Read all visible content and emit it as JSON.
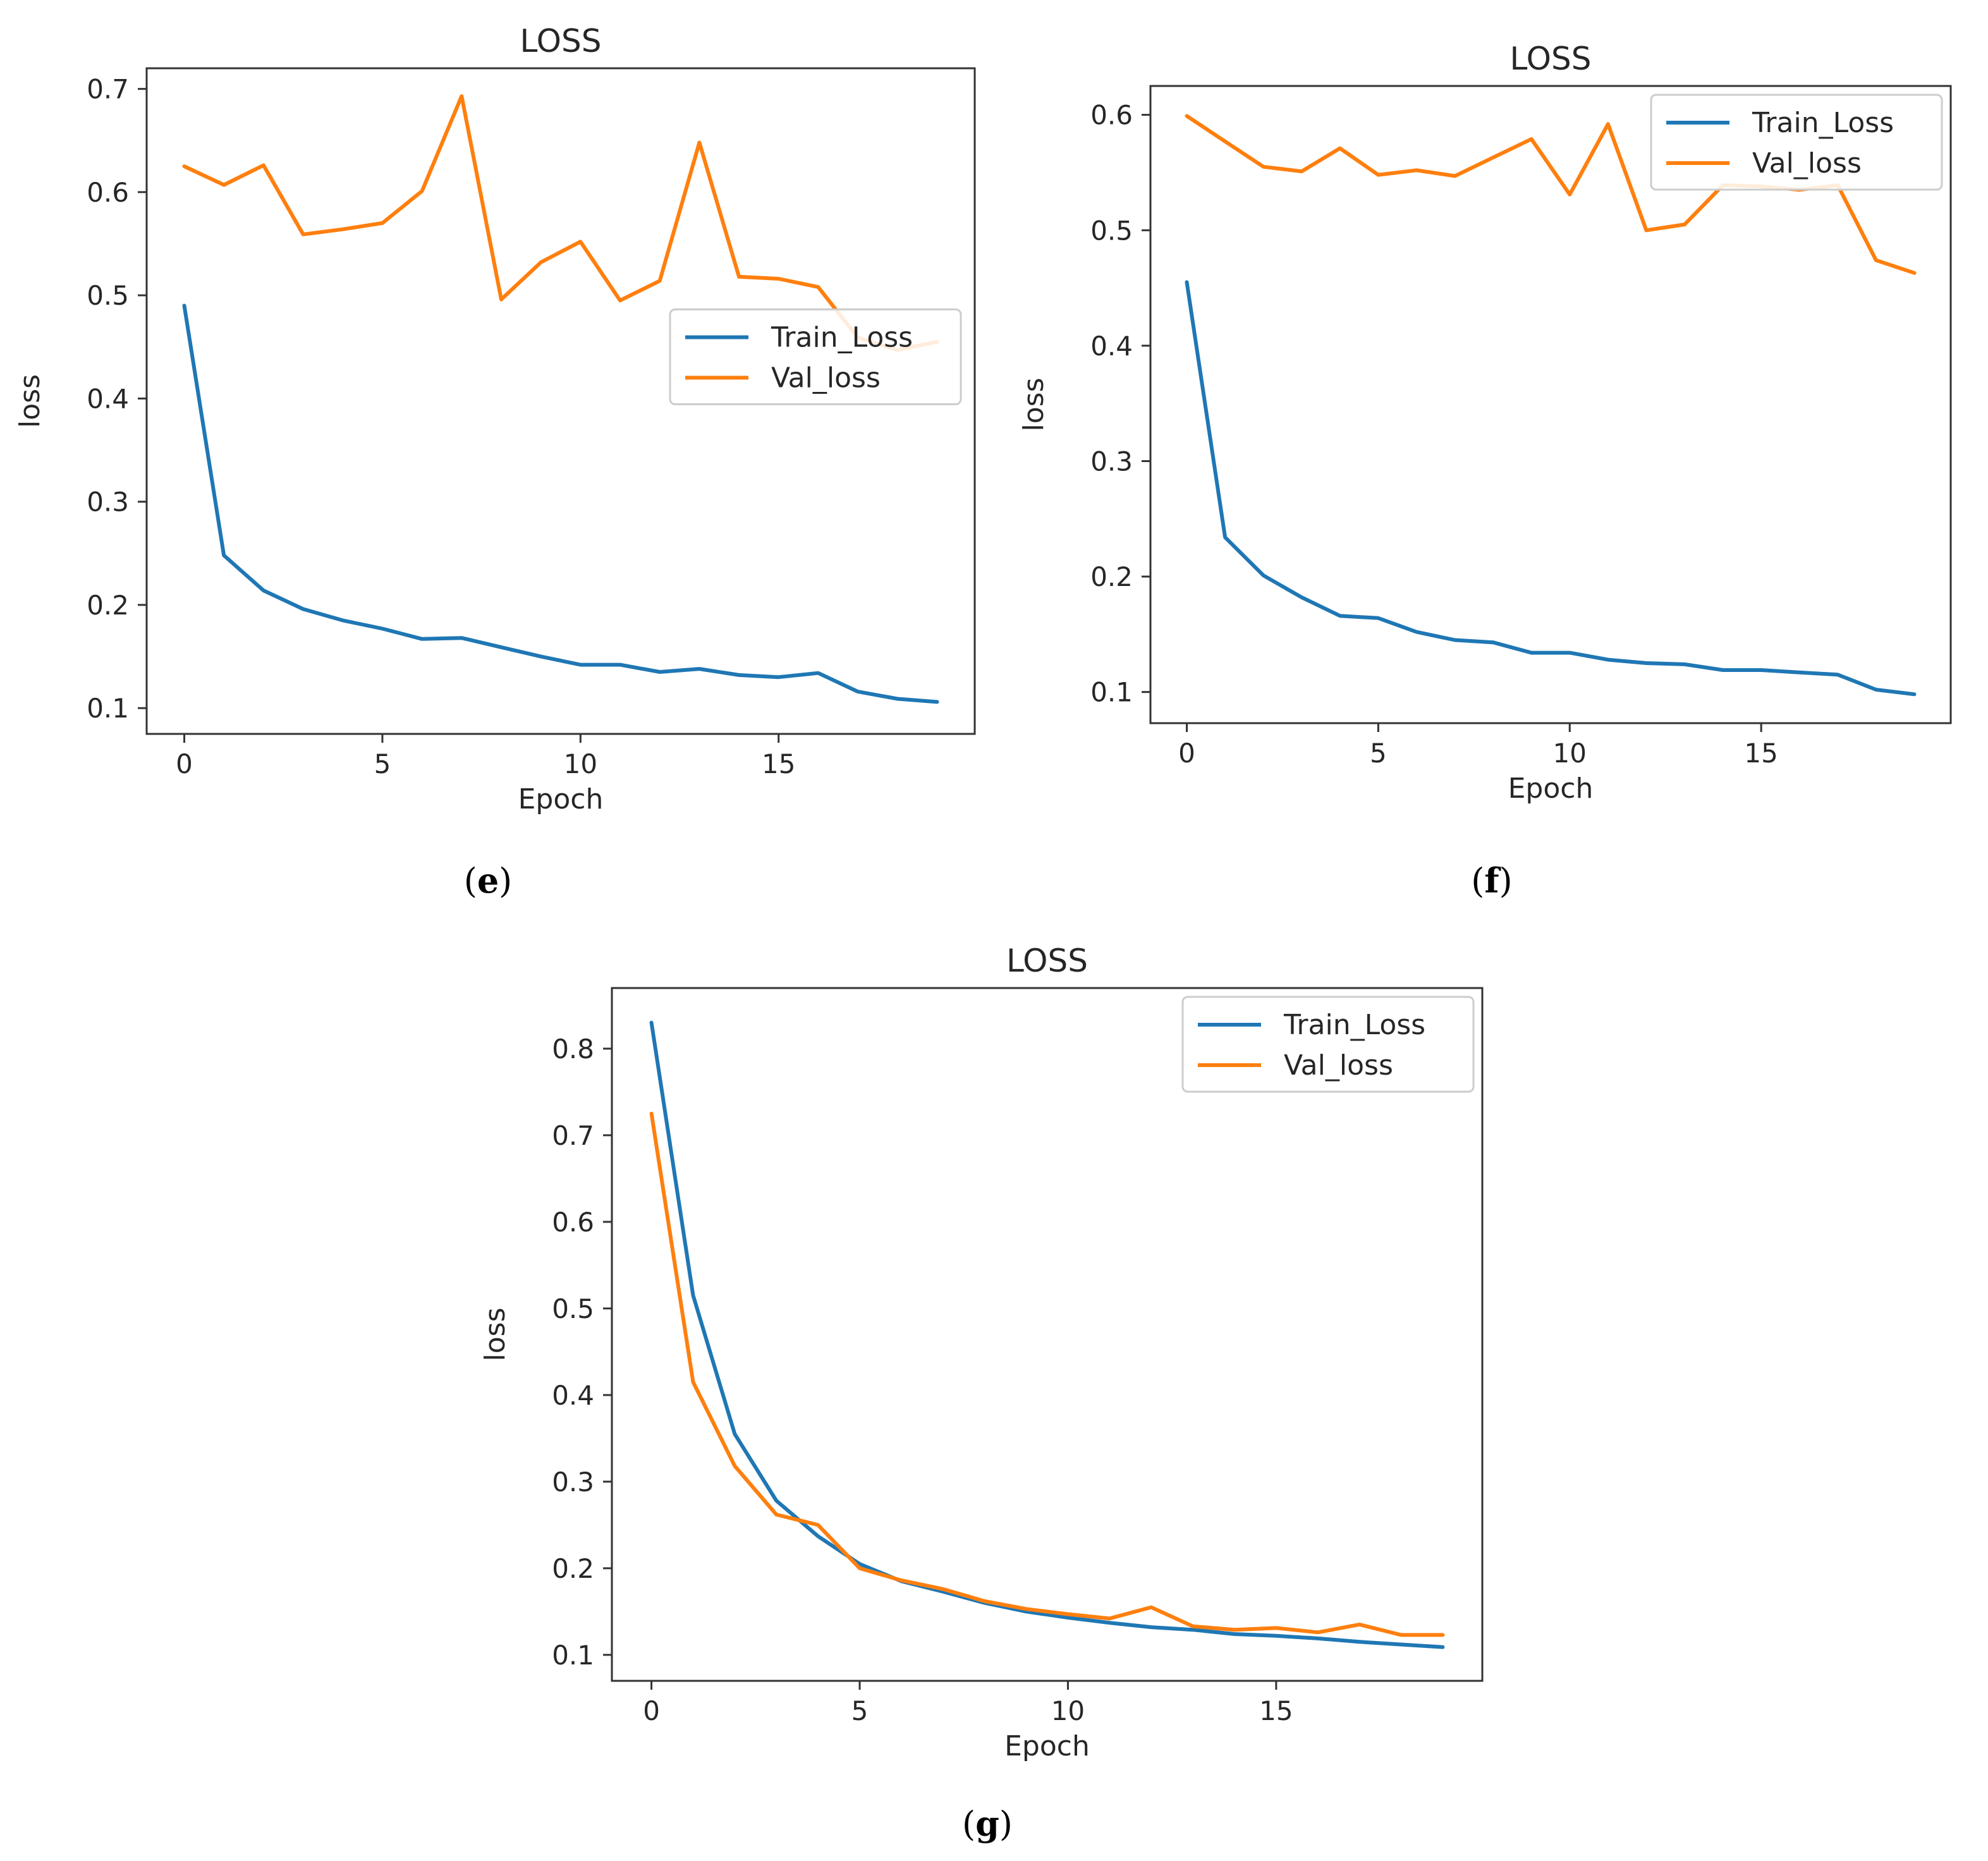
{
  "figure": {
    "panels": [
      {
        "id": "e",
        "caption_letter": "e",
        "legend_position": "center-right"
      },
      {
        "id": "f",
        "caption_letter": "f",
        "legend_position": "top-right"
      },
      {
        "id": "g",
        "caption_letter": "g",
        "legend_position": "top-right"
      }
    ]
  },
  "chart_data": [
    {
      "type": "line",
      "title": "LOSS",
      "xlabel": "Epoch",
      "ylabel": "loss",
      "xlim": [
        -0.95,
        19.95
      ],
      "ylim": [
        0.075,
        0.72
      ],
      "xticks": [
        0,
        5,
        10,
        15
      ],
      "yticks": [
        0.1,
        0.2,
        0.3,
        0.4,
        0.5,
        0.6,
        0.7
      ],
      "x": [
        0,
        1,
        2,
        3,
        4,
        5,
        6,
        7,
        8,
        9,
        10,
        11,
        12,
        13,
        14,
        15,
        16,
        17,
        18,
        19
      ],
      "series": [
        {
          "name": "Train_Loss",
          "color": "#1f77b4",
          "values": [
            0.49,
            0.248,
            0.214,
            0.196,
            0.185,
            0.177,
            0.167,
            0.168,
            0.159,
            0.15,
            0.142,
            0.142,
            0.135,
            0.138,
            0.132,
            0.13,
            0.134,
            0.116,
            0.109,
            0.106
          ]
        },
        {
          "name": "Val_loss",
          "color": "#ff7f0e",
          "values": [
            0.625,
            0.607,
            0.626,
            0.559,
            0.564,
            0.57,
            0.601,
            0.693,
            0.496,
            0.532,
            0.552,
            0.495,
            0.514,
            0.648,
            0.518,
            0.516,
            0.508,
            0.459,
            0.447,
            0.455
          ]
        }
      ]
    },
    {
      "type": "line",
      "title": "LOSS",
      "xlabel": "Epoch",
      "ylabel": "loss",
      "xlim": [
        -0.95,
        19.95
      ],
      "ylim": [
        0.073,
        0.625
      ],
      "xticks": [
        0,
        5,
        10,
        15
      ],
      "yticks": [
        0.1,
        0.2,
        0.3,
        0.4,
        0.5,
        0.6
      ],
      "x": [
        0,
        1,
        2,
        3,
        4,
        5,
        6,
        7,
        8,
        9,
        10,
        11,
        12,
        13,
        14,
        15,
        16,
        17,
        18,
        19
      ],
      "series": [
        {
          "name": "Train_Loss",
          "color": "#1f77b4",
          "values": [
            0.455,
            0.234,
            0.201,
            0.182,
            0.166,
            0.164,
            0.152,
            0.145,
            0.143,
            0.134,
            0.134,
            0.128,
            0.125,
            0.124,
            0.119,
            0.119,
            0.117,
            0.115,
            0.102,
            0.098
          ]
        },
        {
          "name": "Val_loss",
          "color": "#ff7f0e",
          "values": [
            0.599,
            0.577,
            0.555,
            0.551,
            0.571,
            0.548,
            0.552,
            0.547,
            0.563,
            0.579,
            0.531,
            0.592,
            0.5,
            0.505,
            0.539,
            0.538,
            0.535,
            0.539,
            0.474,
            0.463
          ]
        }
      ]
    },
    {
      "type": "line",
      "title": "LOSS",
      "xlabel": "Epoch",
      "ylabel": "loss",
      "xlim": [
        -0.95,
        19.95
      ],
      "ylim": [
        0.07,
        0.87
      ],
      "xticks": [
        0,
        5,
        10,
        15
      ],
      "yticks": [
        0.1,
        0.2,
        0.3,
        0.4,
        0.5,
        0.6,
        0.7,
        0.8
      ],
      "x": [
        0,
        1,
        2,
        3,
        4,
        5,
        6,
        7,
        8,
        9,
        10,
        11,
        12,
        13,
        14,
        15,
        16,
        17,
        18,
        19
      ],
      "series": [
        {
          "name": "Train_Loss",
          "color": "#1f77b4",
          "values": [
            0.83,
            0.515,
            0.355,
            0.278,
            0.237,
            0.205,
            0.185,
            0.173,
            0.16,
            0.15,
            0.143,
            0.137,
            0.132,
            0.129,
            0.124,
            0.122,
            0.119,
            0.115,
            0.112,
            0.109
          ]
        },
        {
          "name": "Val_loss",
          "color": "#ff7f0e",
          "values": [
            0.725,
            0.415,
            0.318,
            0.262,
            0.25,
            0.2,
            0.186,
            0.176,
            0.162,
            0.153,
            0.147,
            0.142,
            0.155,
            0.133,
            0.129,
            0.131,
            0.126,
            0.135,
            0.123,
            0.123
          ]
        }
      ]
    }
  ]
}
